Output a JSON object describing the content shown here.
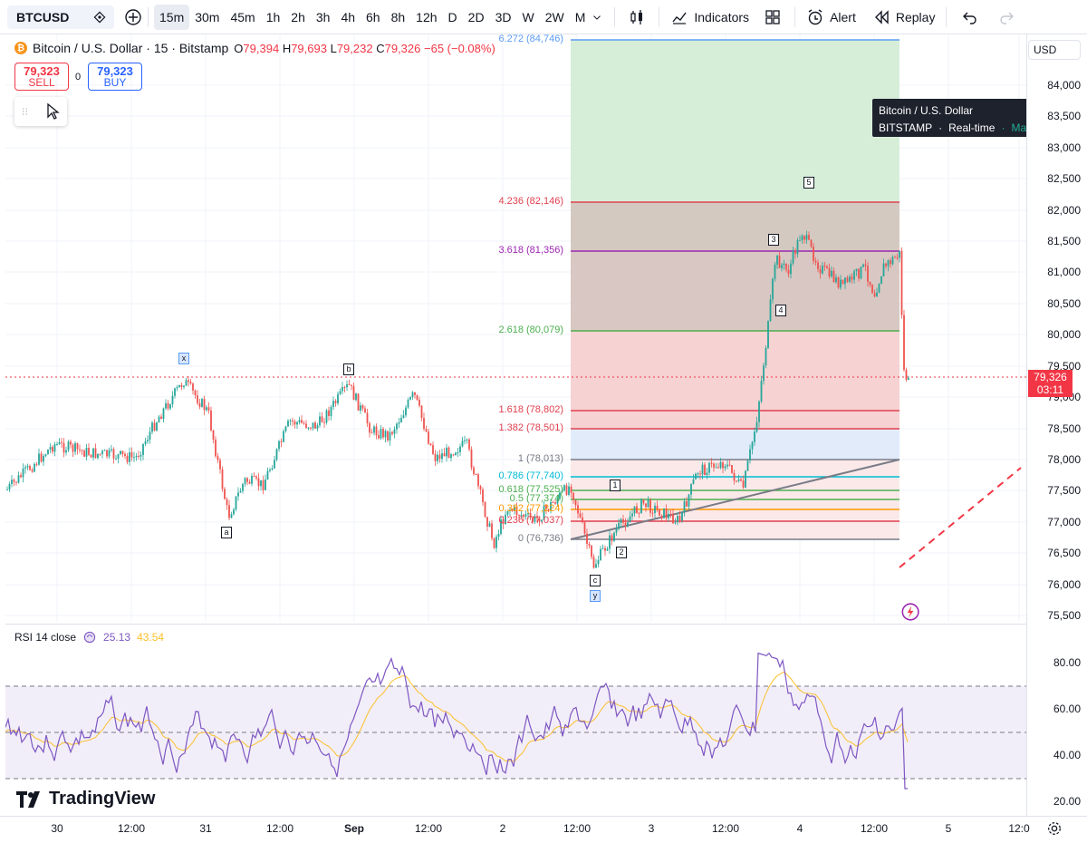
{
  "toolbar": {
    "symbol": "BTCUSD",
    "intervals": [
      "15m",
      "30m",
      "45m",
      "1h",
      "2h",
      "3h",
      "4h",
      "6h",
      "8h",
      "12h",
      "D",
      "2D",
      "3D",
      "W",
      "2W",
      "M"
    ],
    "active_interval": "15m",
    "indicators_label": "Indicators",
    "alert_label": "Alert",
    "replay_label": "Replay"
  },
  "legend": {
    "title": "Bitcoin / U.S. Dollar · 15 · Bitstamp",
    "open_k": "O",
    "open": "79,394",
    "high_k": "H",
    "high": "79,693",
    "low_k": "L",
    "low": "79,232",
    "close_k": "C",
    "close": "79,326",
    "change": "−65 (−0.08%)"
  },
  "trade": {
    "sell_price": "79,323",
    "sell_label": "SELL",
    "spread": "0",
    "buy_price": "79,323",
    "buy_label": "BUY"
  },
  "tooltip": {
    "title": "Bitcoin / U.S. Dollar",
    "exchange": "BITSTAMP",
    "dot1": "·",
    "feed": "Real-time",
    "dot2": "·",
    "status": "Market open"
  },
  "price_axis": {
    "currency": "USD",
    "labels": [
      "84,000",
      "83,500",
      "83,000",
      "82,500",
      "82,000",
      "81,500",
      "81,000",
      "80,500",
      "80,000",
      "79,500",
      "79,000",
      "78,500",
      "78,000",
      "77,500",
      "77,000",
      "76,500",
      "76,000",
      "75,500"
    ],
    "last_price": "79,326",
    "countdown": "03:11"
  },
  "fib": [
    {
      "label": "6.272 (84,746)",
      "color": "#5b9cf6"
    },
    {
      "label": "4.236 (82,146)",
      "color": "#e0414f"
    },
    {
      "label": "3.618 (81,356)",
      "color": "#9c27b0"
    },
    {
      "label": "2.618 (80,079)",
      "color": "#4caf50"
    },
    {
      "label": "1.618 (78,802)",
      "color": "#e0414f"
    },
    {
      "label": "1.382 (78,501)",
      "color": "#e0414f"
    },
    {
      "label": "1 (78,013)",
      "color": "#787b86"
    },
    {
      "label": "0.786 (77,740)",
      "color": "#00bcd4"
    },
    {
      "label": "0.618 (77,525)",
      "color": "#4caf50"
    },
    {
      "label": "0.5 (77,374)",
      "color": "#4caf50"
    },
    {
      "label": "0.382 (77,224)",
      "color": "#ff9800"
    },
    {
      "label": "0.236 (77,037)",
      "color": "#e0414f"
    },
    {
      "label": "0 (76,736)",
      "color": "#787b86"
    }
  ],
  "waves": {
    "x": "x",
    "a": "a",
    "b": "b",
    "c": "c",
    "y": "y",
    "w1": "1",
    "w2": "2",
    "w3": "3",
    "w4": "4",
    "w5": "5"
  },
  "rsi": {
    "label": "RSI 14 close",
    "value": "25.13",
    "ma": "43.54",
    "axis": [
      "80.00",
      "60.00",
      "40.00",
      "20.00"
    ]
  },
  "time_axis": [
    "30",
    "12:00",
    "31",
    "12:00",
    "Sep",
    "12:00",
    "2",
    "12:00",
    "3",
    "12:00",
    "4",
    "12:00",
    "5",
    "12:0"
  ],
  "brand": "TradingView"
}
